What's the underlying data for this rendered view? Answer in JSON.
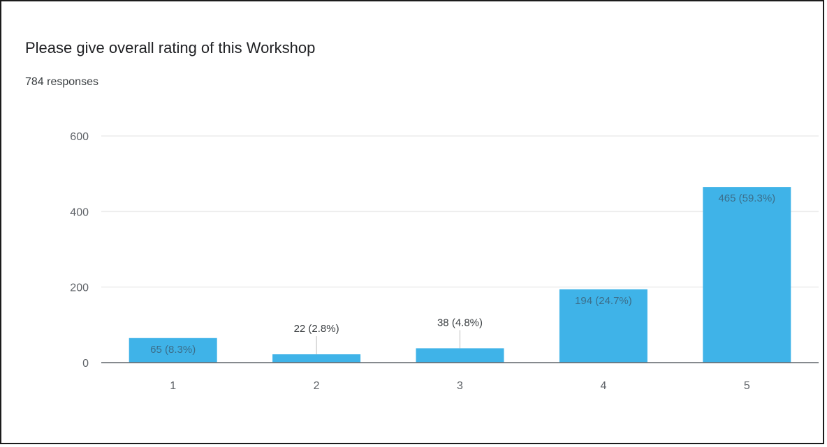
{
  "header": {
    "title": "Please give overall rating of this Workshop",
    "responses": "784 responses"
  },
  "colors": {
    "bar": "#3fb3e8",
    "grid": "#ececec",
    "axis": "#5f6368",
    "label_inside": "#3c6e8a",
    "label_outside": "#3c4043"
  },
  "chart_data": {
    "type": "bar",
    "categories": [
      "1",
      "2",
      "3",
      "4",
      "5"
    ],
    "values": [
      65,
      22,
      38,
      194,
      465
    ],
    "data_labels": [
      "65 (8.3%)",
      "22 (2.8%)",
      "38 (4.8%)",
      "194 (24.7%)",
      "465 (59.3%)"
    ],
    "label_inside": [
      true,
      false,
      false,
      true,
      true
    ],
    "ylim": [
      0,
      600
    ],
    "yticks": [
      0,
      200,
      400,
      600
    ],
    "grid": true,
    "title": "Please give overall rating of this Workshop",
    "xlabel": "",
    "ylabel": ""
  }
}
